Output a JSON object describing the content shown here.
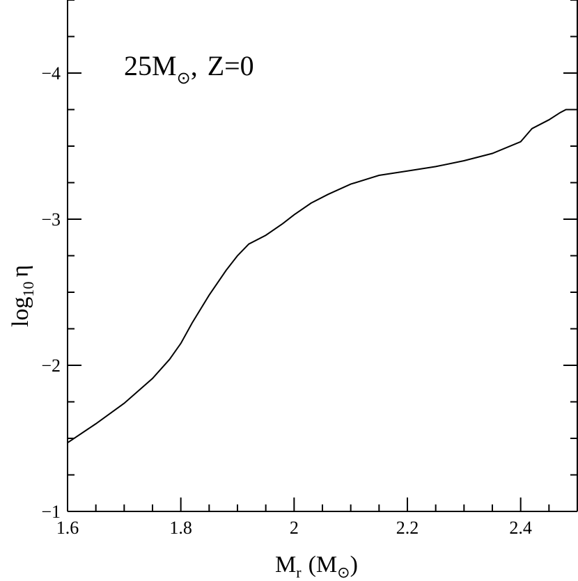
{
  "chart_data": {
    "type": "line",
    "title": "",
    "annotation": {
      "mass": "25",
      "mass_unit_symbol": "M",
      "mass_unit_sub": "⊙",
      "separator": ",",
      "metallicity": "Z=0"
    },
    "xlabel": {
      "main": "M",
      "sub": "r",
      "unit_open": "(M",
      "unit_sub": "⊙",
      "unit_close": ")"
    },
    "ylabel": {
      "main": "log",
      "sub": "10",
      "var": "η"
    },
    "xlim": [
      1.6,
      2.5
    ],
    "ylim": [
      -1,
      -4.5
    ],
    "y_inverted": true,
    "x_tick_labels": [
      "1.6",
      "1.8",
      "2",
      "2.2",
      "2.4"
    ],
    "x_major_ticks": [
      1.6,
      1.8,
      2.0,
      2.2,
      2.4
    ],
    "x_minor_step": 0.05,
    "y_tick_labels": [
      "−1",
      "−2",
      "−3",
      "−4"
    ],
    "y_major_ticks": [
      -1,
      -2,
      -3,
      -4
    ],
    "y_minor_step": 0.25,
    "grid": false,
    "series": [
      {
        "x": [
          1.6,
          1.65,
          1.7,
          1.75,
          1.78,
          1.8,
          1.82,
          1.85,
          1.88,
          1.9,
          1.92,
          1.95,
          1.98,
          2.0,
          2.03,
          2.06,
          2.1,
          2.15,
          2.2,
          2.25,
          2.3,
          2.35,
          2.4,
          2.42,
          2.45,
          2.47,
          2.48,
          2.5
        ],
        "y": [
          -1.47,
          -1.6,
          -1.74,
          -1.91,
          -2.04,
          -2.15,
          -2.29,
          -2.48,
          -2.65,
          -2.75,
          -2.83,
          -2.89,
          -2.97,
          -3.03,
          -3.11,
          -3.17,
          -3.24,
          -3.3,
          -3.33,
          -3.36,
          -3.4,
          -3.45,
          -3.53,
          -3.62,
          -3.68,
          -3.73,
          -3.75,
          -3.75
        ]
      }
    ]
  }
}
